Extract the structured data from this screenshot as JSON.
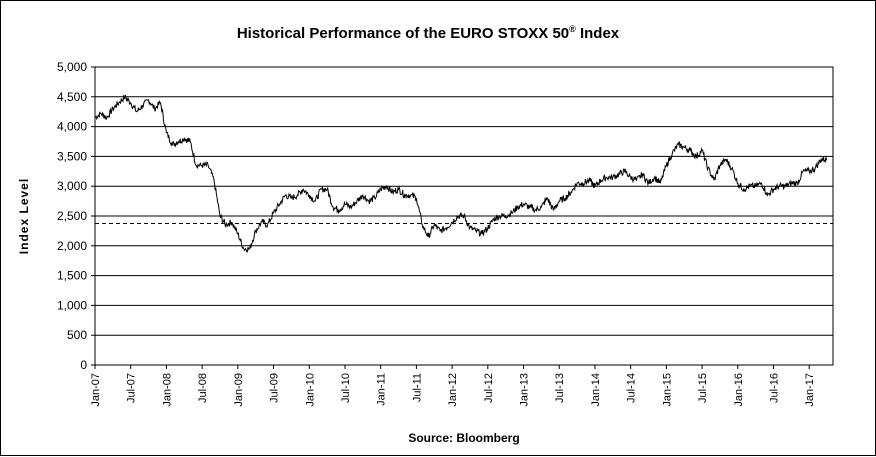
{
  "chart_data": {
    "type": "line",
    "title": "Historical Performance of the EURO STOXX 50",
    "title_mark": "®",
    "title_suffix": "Index",
    "ylabel": "Index Level",
    "xlabel": "Source: Bloomberg",
    "ylim": [
      0,
      5000
    ],
    "yticks": [
      "0",
      "500",
      "1,000",
      "1,500",
      "2,000",
      "2,500",
      "3,000",
      "3,500",
      "4,000",
      "4,500",
      "5,000"
    ],
    "xticks": [
      "Jan-07",
      "Jul-07",
      "Jan-08",
      "Jul-08",
      "Jan-09",
      "Jul-09",
      "Jan-10",
      "Jul-10",
      "Jan-11",
      "Jul-11",
      "Jan-12",
      "Jul-12",
      "Jan-13",
      "Jul-13",
      "Jan-14",
      "Jul-14",
      "Jan-15",
      "Jul-15",
      "Jan-16",
      "Jul-16",
      "Jan-17"
    ],
    "grid": true,
    "x_range": [
      "2007-01-01",
      "2017-05-01"
    ],
    "threshold": {
      "value": 2375,
      "style": "dashed"
    },
    "series": [
      {
        "color": "#000000",
        "x": [
          "2007-01",
          "2007-02",
          "2007-03",
          "2007-04",
          "2007-05",
          "2007-06",
          "2007-07",
          "2007-08",
          "2007-09",
          "2007-10",
          "2007-11",
          "2007-12",
          "2008-01",
          "2008-02",
          "2008-03",
          "2008-04",
          "2008-05",
          "2008-06",
          "2008-07",
          "2008-08",
          "2008-09",
          "2008-10",
          "2008-11",
          "2008-12",
          "2009-01",
          "2009-02",
          "2009-03",
          "2009-04",
          "2009-05",
          "2009-06",
          "2009-07",
          "2009-08",
          "2009-09",
          "2009-10",
          "2009-11",
          "2009-12",
          "2010-01",
          "2010-02",
          "2010-03",
          "2010-04",
          "2010-05",
          "2010-06",
          "2010-07",
          "2010-08",
          "2010-09",
          "2010-10",
          "2010-11",
          "2010-12",
          "2011-01",
          "2011-02",
          "2011-03",
          "2011-04",
          "2011-05",
          "2011-06",
          "2011-07",
          "2011-08",
          "2011-09",
          "2011-10",
          "2011-11",
          "2011-12",
          "2012-01",
          "2012-02",
          "2012-03",
          "2012-04",
          "2012-05",
          "2012-06",
          "2012-07",
          "2012-08",
          "2012-09",
          "2012-10",
          "2012-11",
          "2012-12",
          "2013-01",
          "2013-02",
          "2013-03",
          "2013-04",
          "2013-05",
          "2013-06",
          "2013-07",
          "2013-08",
          "2013-09",
          "2013-10",
          "2013-11",
          "2013-12",
          "2014-01",
          "2014-02",
          "2014-03",
          "2014-04",
          "2014-05",
          "2014-06",
          "2014-07",
          "2014-08",
          "2014-09",
          "2014-10",
          "2014-11",
          "2014-12",
          "2015-01",
          "2015-02",
          "2015-03",
          "2015-04",
          "2015-05",
          "2015-06",
          "2015-07",
          "2015-08",
          "2015-09",
          "2015-10",
          "2015-11",
          "2015-12",
          "2016-01",
          "2016-02",
          "2016-03",
          "2016-04",
          "2016-05",
          "2016-06",
          "2016-07",
          "2016-08",
          "2016-09",
          "2016-10",
          "2016-11",
          "2016-12",
          "2017-01",
          "2017-02",
          "2017-03",
          "2017-04"
        ],
        "values": [
          4150,
          4220,
          4150,
          4300,
          4400,
          4500,
          4400,
          4250,
          4350,
          4450,
          4300,
          4400,
          3900,
          3700,
          3750,
          3800,
          3750,
          3350,
          3350,
          3350,
          3100,
          2500,
          2350,
          2400,
          2200,
          1950,
          1950,
          2250,
          2400,
          2350,
          2550,
          2700,
          2850,
          2800,
          2850,
          2950,
          2850,
          2750,
          2950,
          2950,
          2650,
          2600,
          2700,
          2650,
          2750,
          2850,
          2750,
          2800,
          2950,
          3000,
          2900,
          2950,
          2850,
          2850,
          2800,
          2350,
          2150,
          2350,
          2250,
          2300,
          2400,
          2500,
          2500,
          2300,
          2250,
          2200,
          2300,
          2450,
          2500,
          2500,
          2550,
          2650,
          2700,
          2650,
          2600,
          2650,
          2800,
          2600,
          2750,
          2800,
          2900,
          3050,
          3050,
          3100,
          3000,
          3100,
          3150,
          3150,
          3200,
          3250,
          3150,
          3100,
          3200,
          3050,
          3150,
          3050,
          3350,
          3550,
          3700,
          3650,
          3600,
          3500,
          3600,
          3300,
          3100,
          3350,
          3450,
          3300,
          3050,
          2950,
          3000,
          3000,
          3050,
          2850,
          2950,
          3000,
          3000,
          3050,
          3050,
          3250,
          3250,
          3300,
          3450,
          3450
        ]
      }
    ]
  }
}
